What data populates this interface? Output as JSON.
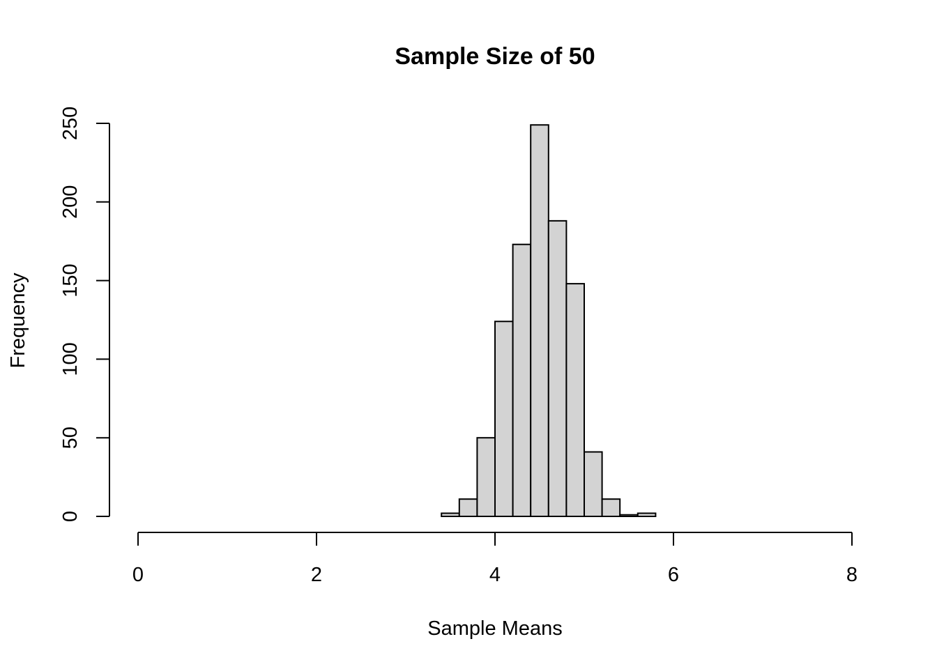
{
  "chart_data": {
    "type": "bar",
    "title": "Sample Size of 50",
    "xlabel": "Sample Means",
    "ylabel": "Frequency",
    "xlim": [
      0,
      8
    ],
    "ylim": [
      0,
      250
    ],
    "x_ticks": [
      "0",
      "2",
      "4",
      "6",
      "8"
    ],
    "y_ticks": [
      "0",
      "50",
      "100",
      "150",
      "200",
      "250"
    ],
    "bin_width": 0.2,
    "bins": [
      {
        "start": 3.4,
        "end": 3.6,
        "count": 2
      },
      {
        "start": 3.6,
        "end": 3.8,
        "count": 11
      },
      {
        "start": 3.8,
        "end": 4.0,
        "count": 50
      },
      {
        "start": 4.0,
        "end": 4.2,
        "count": 124
      },
      {
        "start": 4.2,
        "end": 4.4,
        "count": 173
      },
      {
        "start": 4.4,
        "end": 4.6,
        "count": 249
      },
      {
        "start": 4.6,
        "end": 4.8,
        "count": 188
      },
      {
        "start": 4.8,
        "end": 5.0,
        "count": 148
      },
      {
        "start": 5.0,
        "end": 5.2,
        "count": 41
      },
      {
        "start": 5.2,
        "end": 5.4,
        "count": 11
      },
      {
        "start": 5.4,
        "end": 5.6,
        "count": 1
      },
      {
        "start": 5.6,
        "end": 5.8,
        "count": 2
      }
    ],
    "bar_color": "#d3d3d3",
    "grid": false
  }
}
